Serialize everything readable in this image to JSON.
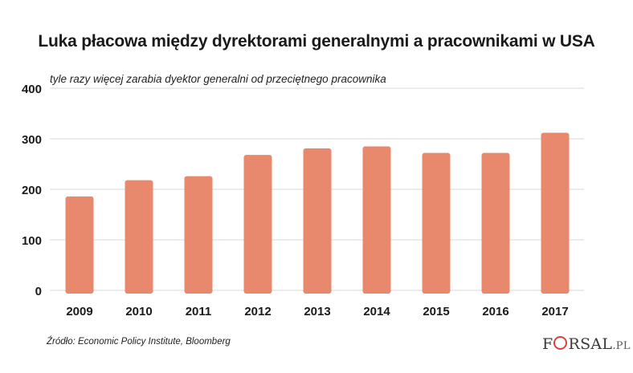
{
  "title": "Luka płacowa między dyrektorami generalnymi a pracownikami w USA",
  "subtitle": "tyle razy więcej zarabia dyektor generalni od przeciętnego pracownika",
  "source": "Źródło: Economic Policy Institute, Bloomberg",
  "logo": {
    "left": "F",
    "right": "RSAL",
    "suffix": ".PL",
    "text": "FORSAL.PL"
  },
  "colors": {
    "bar": "#e8896d",
    "grid": "#d8d8d8",
    "text": "#1a1a1a",
    "logo_accent": "#d8433a"
  },
  "chart_data": {
    "type": "bar",
    "title": "Luka płacowa między dyrektorami generalnymi a pracownikami w USA",
    "subtitle": "tyle razy więcej zarabia dyektor generalni od przeciętnego pracownika",
    "categories": [
      "2009",
      "2010",
      "2011",
      "2012",
      "2013",
      "2014",
      "2015",
      "2016",
      "2017"
    ],
    "values": [
      186,
      218,
      226,
      268,
      281,
      285,
      272,
      272,
      312
    ],
    "ylim": [
      0,
      400
    ],
    "yticks": [
      0,
      100,
      200,
      300,
      400
    ],
    "grid": true,
    "legend": "none"
  }
}
